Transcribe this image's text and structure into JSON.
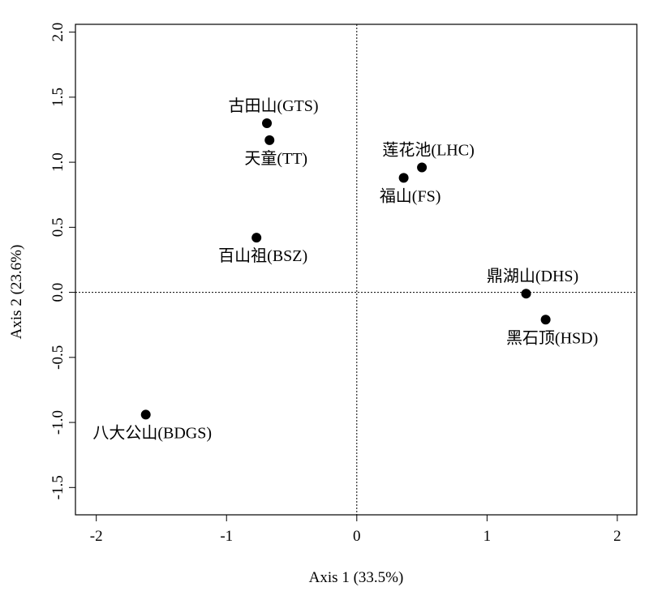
{
  "chart_data": {
    "type": "scatter",
    "title": "",
    "xlabel": "Axis 1 (33.5%)",
    "ylabel": "Axis 2 (23.6%)",
    "xlim": [
      -2.16,
      2.15
    ],
    "ylim": [
      -1.71,
      2.06
    ],
    "xticks": [
      -2,
      -1,
      0,
      1,
      2
    ],
    "xtick_labels": [
      "-2",
      "-1",
      "0",
      "1",
      "2"
    ],
    "yticks": [
      -1.5,
      -1.0,
      -0.5,
      0.0,
      0.5,
      1.0,
      1.5,
      2.0
    ],
    "ytick_labels": [
      "-1.5",
      "-1.0",
      "-0.5",
      "0.0",
      "0.5",
      "1.0",
      "1.5",
      "2.0"
    ],
    "reference_lines": {
      "x": 0,
      "y": 0,
      "style": "dotted"
    },
    "grid": false,
    "points": [
      {
        "label": "古田山(GTS)",
        "x": -0.69,
        "y": 1.3,
        "label_pos": "above"
      },
      {
        "label": "天童(TT)",
        "x": -0.67,
        "y": 1.17,
        "label_pos": "below"
      },
      {
        "label": "莲花池(LHC)",
        "x": 0.5,
        "y": 0.96,
        "label_pos": "above"
      },
      {
        "label": "福山(FS)",
        "x": 0.36,
        "y": 0.88,
        "label_pos": "below"
      },
      {
        "label": "百山祖(BSZ)",
        "x": -0.77,
        "y": 0.42,
        "label_pos": "below"
      },
      {
        "label": "鼎湖山(DHS)",
        "x": 1.3,
        "y": -0.01,
        "label_pos": "above"
      },
      {
        "label": "黑石顶(HSD)",
        "x": 1.45,
        "y": -0.21,
        "label_pos": "below"
      },
      {
        "label": "八大公山(BDGS)",
        "x": -1.62,
        "y": -0.94,
        "label_pos": "below"
      }
    ]
  }
}
